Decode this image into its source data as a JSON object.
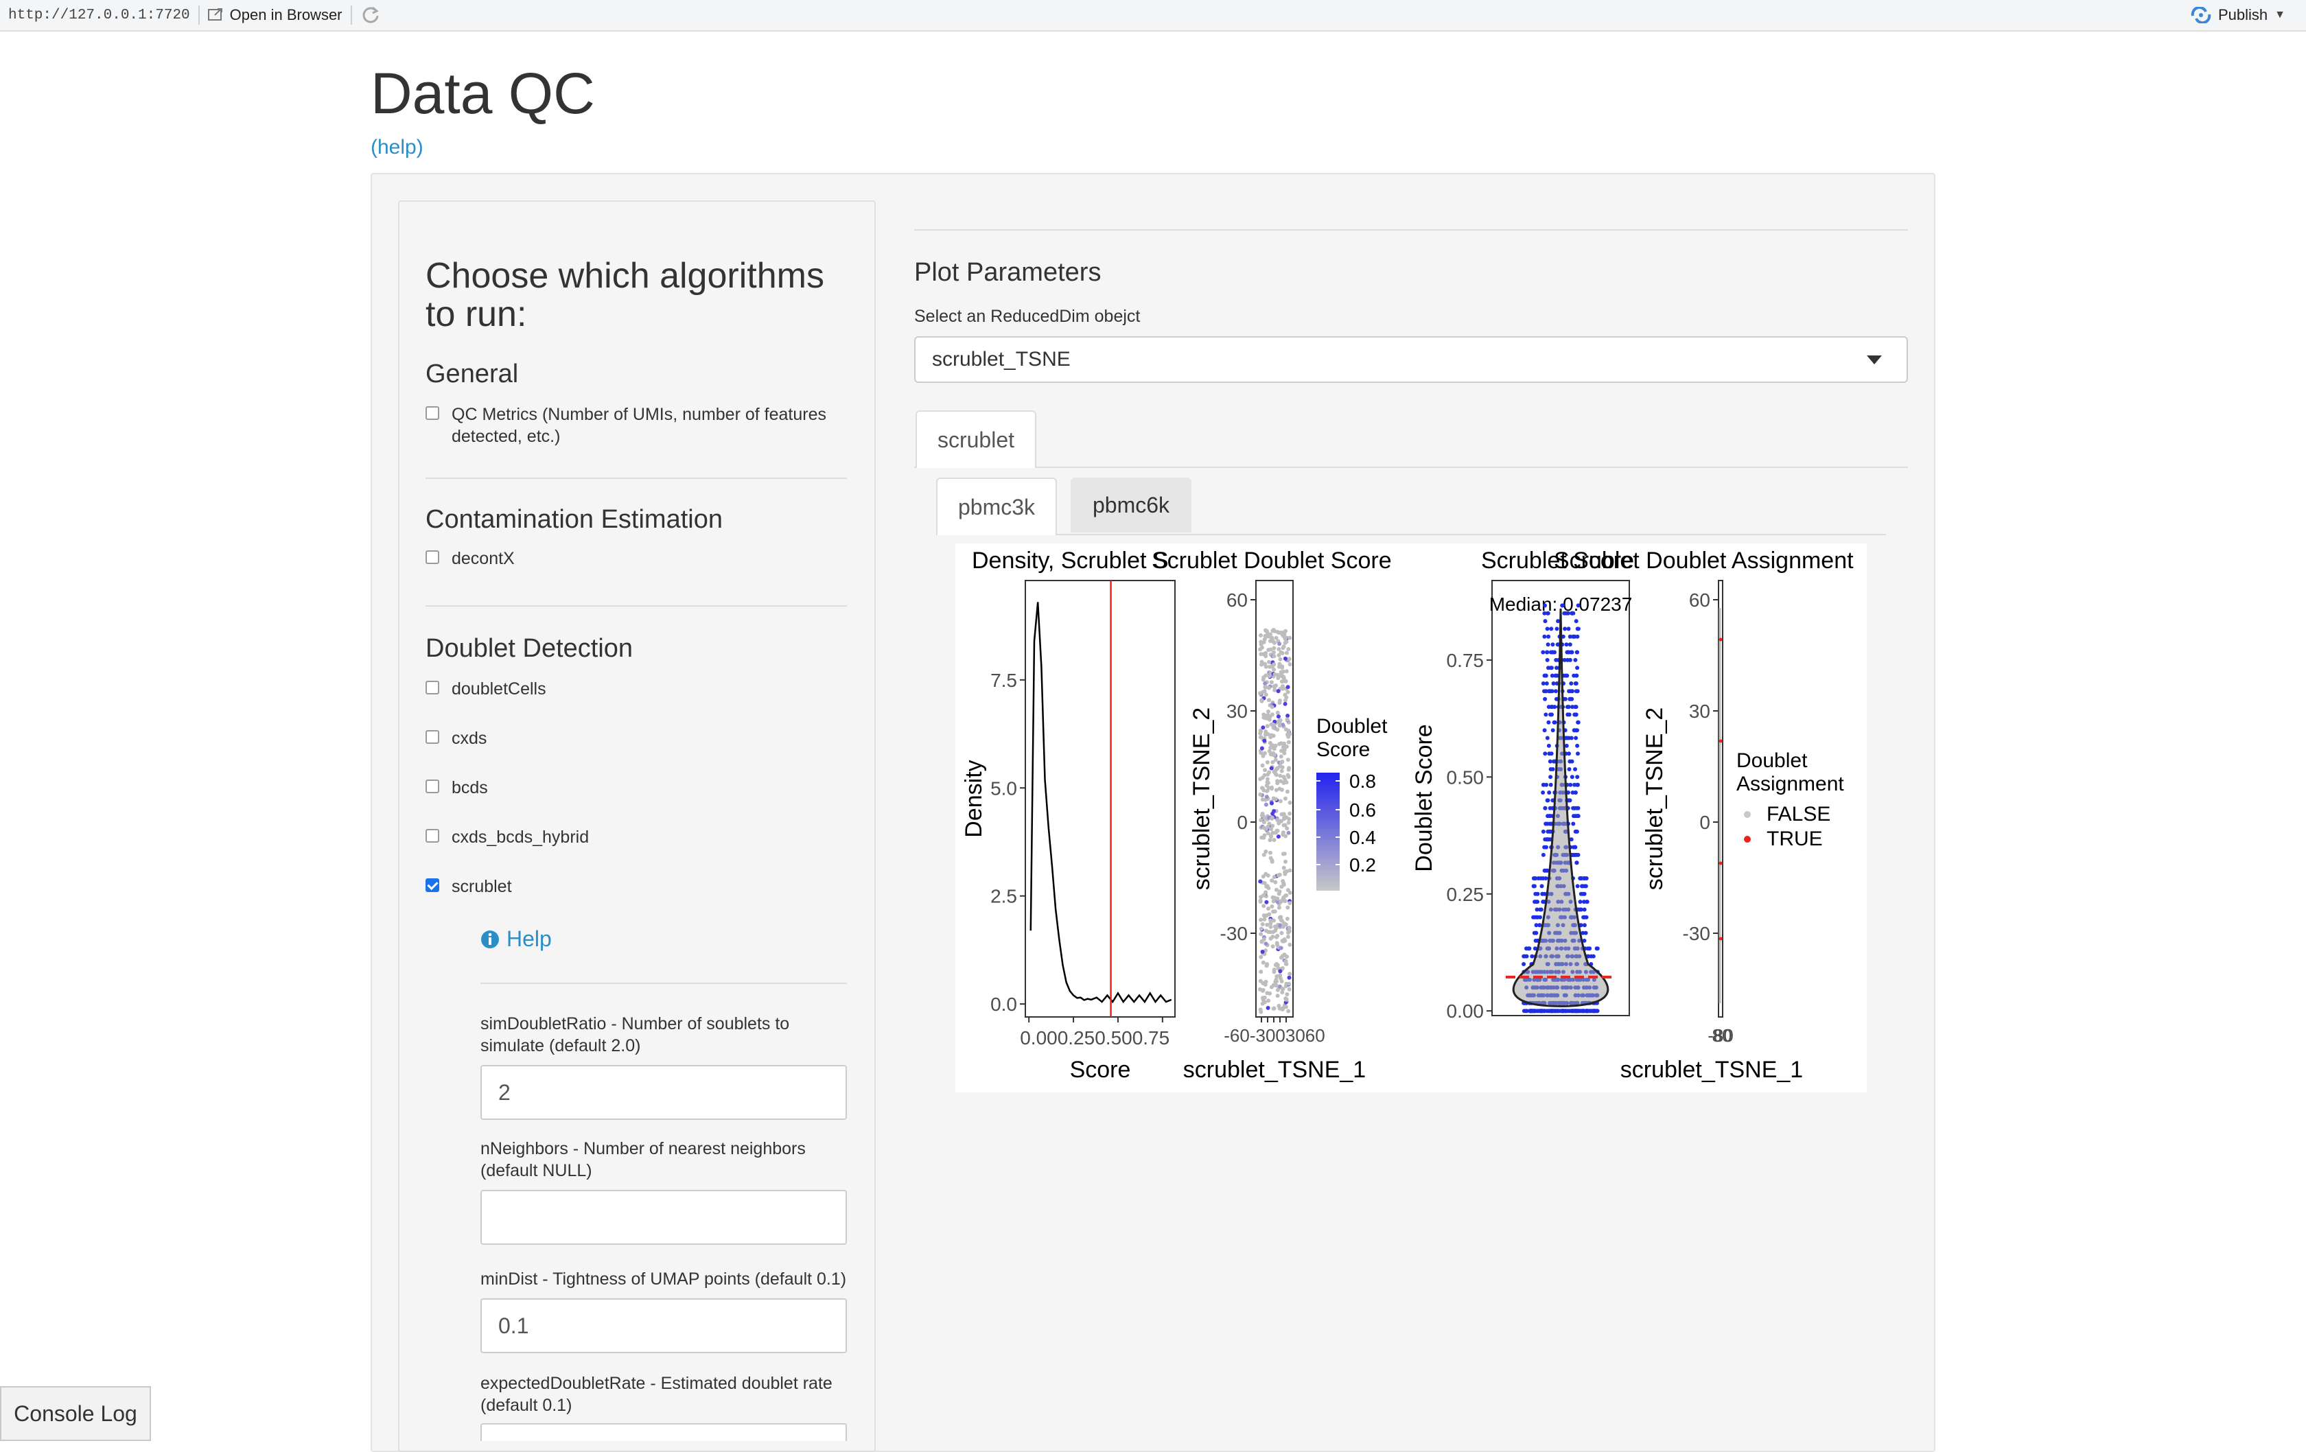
{
  "topbar": {
    "url": "http://127.0.0.1:7720",
    "open_in_browser": "Open in Browser",
    "publish": "Publish"
  },
  "page": {
    "title": "Data QC",
    "help_link": "(help)"
  },
  "sidebar": {
    "heading": "Choose which algorithms to run:",
    "general": {
      "title": "General",
      "items": [
        {
          "label": "QC Metrics (Number of UMIs, number of features detected, etc.)",
          "checked": false
        }
      ]
    },
    "contamination": {
      "title": "Contamination Estimation",
      "items": [
        {
          "label": "decontX",
          "checked": false
        }
      ]
    },
    "doublet": {
      "title": "Doublet Detection",
      "items": [
        {
          "label": "doubletCells",
          "checked": false
        },
        {
          "label": "cxds",
          "checked": false
        },
        {
          "label": "bcds",
          "checked": false
        },
        {
          "label": "cxds_bcds_hybrid",
          "checked": false
        },
        {
          "label": "scrublet",
          "checked": true
        }
      ]
    },
    "scrublet_help": "Help",
    "params": [
      {
        "label": "simDoubletRatio - Number of soublets to simulate (default 2.0)",
        "value": "2",
        "placeholder": ""
      },
      {
        "label": "nNeighbors - Number of nearest neighbors (default NULL)",
        "value": "",
        "placeholder": ""
      },
      {
        "label": "minDist - Tightness of UMAP points (default 0.1)",
        "value": "0.1",
        "placeholder": ""
      },
      {
        "label": "expectedDoubletRate - Estimated doublet rate (default 0.1)",
        "value": "",
        "placeholder": ""
      }
    ]
  },
  "main": {
    "plot_params_title": "Plot Parameters",
    "select_label": "Select an ReducedDim obejct",
    "select_value": "scrublet_TSNE",
    "outer_tab": "scrublet",
    "sample_tabs": [
      "pbmc3k",
      "pbmc6k"
    ]
  },
  "chart_data": [
    {
      "type": "line",
      "title": "Density, Scrublet S",
      "xlabel": "Score",
      "ylabel": "Density",
      "x_ticks": [
        "0.00",
        "0.25",
        "0.50",
        "0.75"
      ],
      "y_ticks": [
        "0.0",
        "2.5",
        "5.0",
        "7.5"
      ],
      "xlim": [
        -0.02,
        0.82
      ],
      "ylim": [
        -0.3,
        9.8
      ],
      "x": [
        0.01,
        0.03,
        0.05,
        0.07,
        0.09,
        0.11,
        0.13,
        0.15,
        0.17,
        0.19,
        0.21,
        0.23,
        0.25,
        0.27,
        0.29,
        0.31,
        0.33,
        0.35,
        0.38,
        0.41,
        0.44,
        0.47,
        0.5,
        0.53,
        0.56,
        0.59,
        0.62,
        0.65,
        0.68,
        0.71,
        0.74,
        0.77,
        0.8
      ],
      "y": [
        1.7,
        8.4,
        9.3,
        7.8,
        5.2,
        4.1,
        3.2,
        2.2,
        1.5,
        0.9,
        0.5,
        0.3,
        0.2,
        0.14,
        0.15,
        0.09,
        0.12,
        0.1,
        0.15,
        0.05,
        0.2,
        0.05,
        0.25,
        0.05,
        0.2,
        0.05,
        0.2,
        0.05,
        0.25,
        0.05,
        0.2,
        0.05,
        0.1
      ],
      "threshold_line": 0.46,
      "grid": false
    },
    {
      "type": "scatter",
      "title": "Scrublet Doublet Score",
      "xlabel": "scrublet_TSNE_1",
      "ylabel": "scrublet_TSNE_2",
      "y_ticks": [
        "60",
        "30",
        "0",
        "-30"
      ],
      "x_ticks": [
        "-60",
        "-30",
        "0",
        "30",
        "60"
      ],
      "legend": {
        "title": "Doublet Score",
        "breaks": [
          "0.8",
          "0.6",
          "0.4",
          "0.2"
        ],
        "low_color": "#c8c8c8",
        "high_color": "#2222ee"
      }
    },
    {
      "type": "violin",
      "title": "Scrublet Score",
      "ylabel": "Doublet Score",
      "y_ticks": [
        "0.00",
        "0.25",
        "0.50",
        "0.75"
      ],
      "ylim": [
        -0.01,
        0.92
      ],
      "median_label": "Median: 0.07237",
      "median": 0.07237
    },
    {
      "type": "scatter",
      "title": "Scrublet Doublet Assignment",
      "xlabel": "scrublet_TSNE_1",
      "ylabel": "scrublet_TSNE_2",
      "y_ticks": [
        "60",
        "30",
        "0",
        "-30"
      ],
      "x_ticks": [
        "-80",
        "40",
        "0",
        "40",
        "80"
      ],
      "legend": {
        "title": "Doublet Assignment",
        "entries": [
          {
            "label": "FALSE",
            "color": "#c8c8c8"
          },
          {
            "label": "TRUE",
            "color": "#e8241b"
          }
        ]
      }
    }
  ],
  "console_log": "Console Log"
}
